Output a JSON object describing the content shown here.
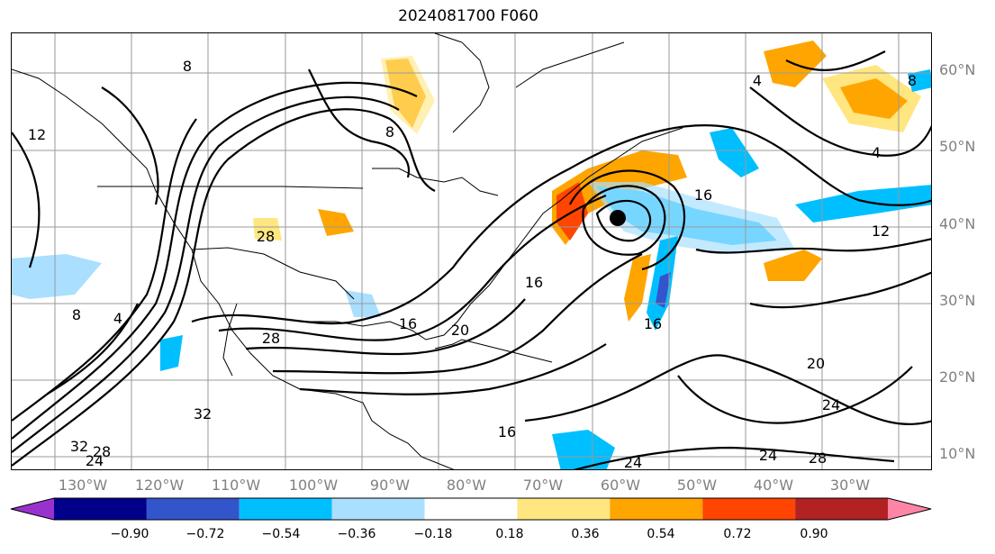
{
  "title": "2024081700 F060",
  "lat_labels": [
    "60°N",
    "50°N",
    "40°N",
    "30°N",
    "20°N",
    "10°N"
  ],
  "lon_labels": [
    "130°W",
    "120°W",
    "110°W",
    "100°W",
    "90°W",
    "80°W",
    "70°W",
    "60°W",
    "50°W",
    "40°W",
    "30°W"
  ],
  "contour_labels": [
    "8",
    "8",
    "8",
    "4",
    "4",
    "4",
    "12",
    "12",
    "16",
    "16",
    "16",
    "16",
    "16",
    "20",
    "20",
    "24",
    "24",
    "24",
    "28",
    "28",
    "28",
    "32",
    "8",
    "24",
    "28",
    "32"
  ],
  "colorbar": {
    "ticks": [
      "−0.90",
      "−0.72",
      "−0.54",
      "−0.36",
      "−0.18",
      "0.18",
      "0.36",
      "0.54",
      "0.72",
      "0.90"
    ],
    "colors": [
      "#9932cc",
      "#00008b",
      "#3355cc",
      "#00bfff",
      "#aadfff",
      "#ffffff",
      "#ffe680",
      "#ffa500",
      "#ff4500",
      "#b22222",
      "#ff85a7"
    ]
  }
}
